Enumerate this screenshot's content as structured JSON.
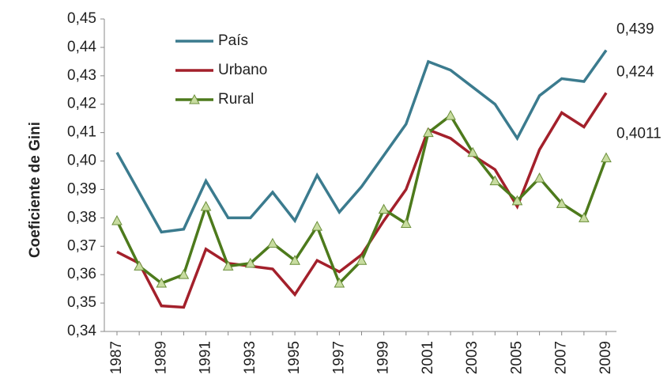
{
  "chart_data": {
    "type": "line",
    "y_label": "Coeficiente de Gini",
    "x": [
      1987,
      1988,
      1989,
      1990,
      1991,
      1992,
      1993,
      1994,
      1995,
      1996,
      1997,
      1998,
      1999,
      2000,
      2001,
      2002,
      2003,
      2004,
      2005,
      2006,
      2007,
      2008,
      2009
    ],
    "xlim": [
      1987,
      2009
    ],
    "xticks": [
      1987,
      1989,
      1991,
      1993,
      1995,
      1997,
      1999,
      2001,
      2003,
      2005,
      2007,
      2009
    ],
    "ylim": [
      0.34,
      0.45
    ],
    "yticks": [
      {
        "value": 0.34,
        "label": "0,34"
      },
      {
        "value": 0.35,
        "label": "0,35"
      },
      {
        "value": 0.36,
        "label": "0,36"
      },
      {
        "value": 0.37,
        "label": "0,37"
      },
      {
        "value": 0.38,
        "label": "0,38"
      },
      {
        "value": 0.39,
        "label": "0,39"
      },
      {
        "value": 0.4,
        "label": "0,40"
      },
      {
        "value": 0.41,
        "label": "0,41"
      },
      {
        "value": 0.42,
        "label": "0,42"
      },
      {
        "value": 0.43,
        "label": "0,43"
      },
      {
        "value": 0.44,
        "label": "0,44"
      },
      {
        "value": 0.45,
        "label": "0,45"
      }
    ],
    "legend": "upper left",
    "series": [
      {
        "name": "País",
        "color": "#3b7b8e",
        "values": [
          0.403,
          0.389,
          0.375,
          0.376,
          0.393,
          0.38,
          0.38,
          0.389,
          0.379,
          0.395,
          0.382,
          0.391,
          0.402,
          0.413,
          0.435,
          0.432,
          0.426,
          0.42,
          0.408,
          0.423,
          0.429,
          0.428,
          0.439
        ]
      },
      {
        "name": "Urbano",
        "color": "#a3202b",
        "values": [
          0.368,
          0.364,
          0.349,
          0.3485,
          0.369,
          0.364,
          0.363,
          0.362,
          0.353,
          0.365,
          0.361,
          0.367,
          0.379,
          0.39,
          0.411,
          0.408,
          0.402,
          0.397,
          0.384,
          0.404,
          0.417,
          0.412,
          0.424
        ]
      },
      {
        "name": "Rural",
        "color": "#4d7a1c",
        "marker": "triangle",
        "values": [
          0.379,
          0.363,
          0.357,
          0.36,
          0.384,
          0.363,
          0.364,
          0.371,
          0.365,
          0.377,
          0.357,
          0.365,
          0.383,
          0.378,
          0.41,
          0.416,
          0.403,
          0.393,
          0.386,
          0.394,
          0.385,
          0.38,
          0.4011
        ]
      }
    ],
    "annotations": [
      "0,439",
      "0,424",
      "0,4011"
    ]
  }
}
